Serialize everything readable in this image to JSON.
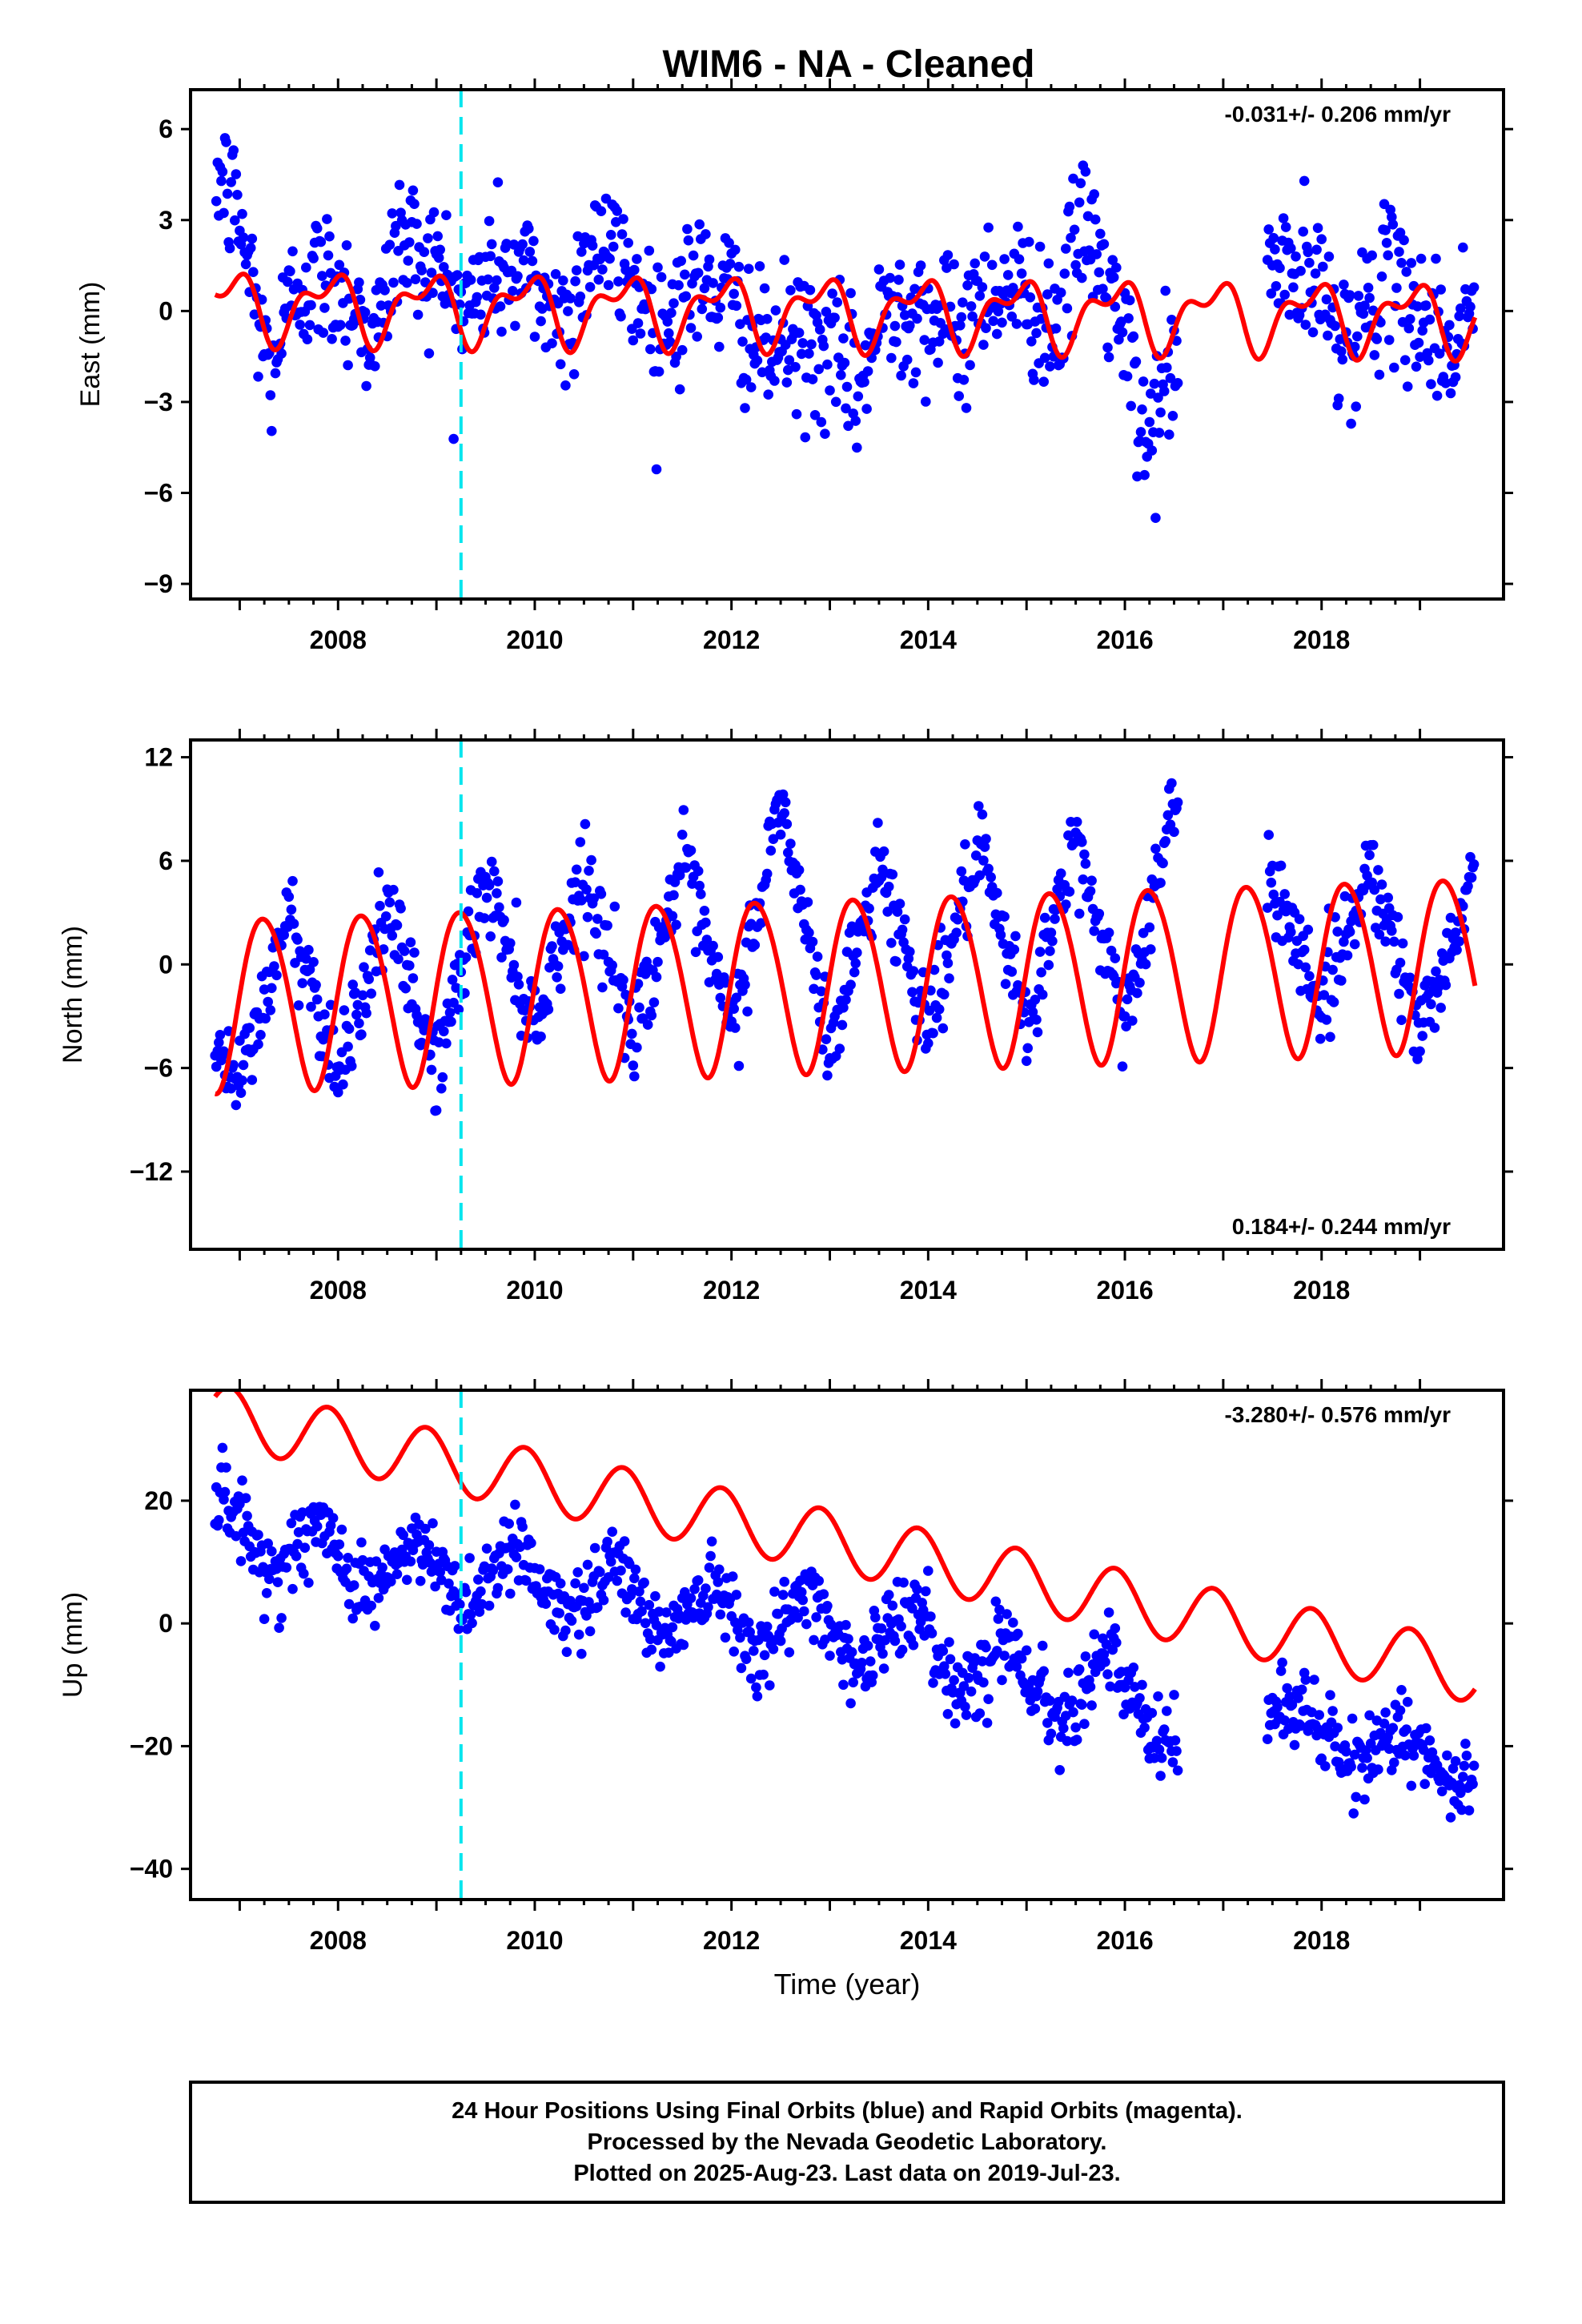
{
  "title": "WIM6  - NA - Cleaned",
  "colors": {
    "data_points": "#0000ff",
    "model_fit": "#ff0000",
    "event_marker": "#00e5ee",
    "frame": "#000000"
  },
  "x_ticks": [
    "2008",
    "2010",
    "2012",
    "2014",
    "2016",
    "2018"
  ],
  "xlabel": "Time (year)",
  "event_marker_year": 2009.25,
  "data_span_years": [
    2006.75,
    2019.56
  ],
  "footer": {
    "line1": "24 Hour Positions Using Final Orbits (blue) and Rapid Orbits (magenta).",
    "line2": "Processed by the Nevada Geodetic Laboratory.",
    "line3": "Plotted on 2025-Aug-23. Last data on 2019-Jul-23."
  },
  "chart_data": [
    {
      "type": "scatter",
      "component": "East",
      "ylabel": "East (mm)",
      "rate_text": "-0.031+/- 0.206 mm/yr",
      "rate_position": "top-right",
      "xlim": [
        2006.5,
        2019.85
      ],
      "ylim": [
        -9.5,
        7.3
      ],
      "yticks": [
        -9,
        -6,
        -3,
        0,
        3,
        6
      ],
      "ytick_labels": [
        "−9",
        "−6",
        "−3",
        "0",
        "3",
        "6"
      ],
      "model": {
        "offset": 0.0,
        "trend": -0.031,
        "annual_amp": 0.95,
        "annual_phase": 2.2,
        "semi_amp": 0.55,
        "semi_phase": 0.4
      },
      "scatter_sd": 1.2,
      "series": [
        {
          "x": [
            2006.8,
            2007.0,
            2007.3,
            2007.6,
            2008.0,
            2008.4,
            2008.6,
            2009.0,
            2009.3,
            2009.6,
            2010.0,
            2010.3,
            2010.6,
            2011.0,
            2011.3,
            2011.6,
            2012.0,
            2012.3,
            2012.6,
            2013.0,
            2013.3,
            2013.6,
            2014.0,
            2014.3,
            2014.6,
            2015.0,
            2015.3,
            2015.6,
            2016.0,
            2016.2,
            2016.5,
            2017.6,
            2018.0,
            2018.3,
            2018.6,
            2019.0,
            2019.3,
            2019.5
          ],
          "y": [
            4.5,
            3.0,
            -2.0,
            1.0,
            1.0,
            -1.0,
            2.5,
            1.5,
            0.0,
            1.5,
            1.0,
            -0.5,
            2.5,
            1.0,
            -0.5,
            1.0,
            0.5,
            -1.5,
            -1.0,
            -1.5,
            -2.5,
            0.5,
            0.0,
            -1.0,
            1.0,
            0.5,
            -0.5,
            3.0,
            -1.0,
            -4.5,
            -1.5,
            1.5,
            0.5,
            -1.0,
            1.0,
            0.0,
            -1.5,
            0.5
          ]
        }
      ]
    },
    {
      "type": "scatter",
      "component": "North",
      "ylabel": "North (mm)",
      "rate_text": "0.184+/- 0.244 mm/yr",
      "rate_position": "bottom-right",
      "xlim": [
        2006.5,
        2019.85
      ],
      "ylim": [
        -16.5,
        13.0
      ],
      "yticks": [
        -12,
        -6,
        0,
        6,
        12
      ],
      "ytick_labels": [
        "−12",
        "−6",
        "0",
        "6",
        "12"
      ],
      "model": {
        "offset": -1.0,
        "trend": 0.184,
        "annual_amp": 5.0,
        "annual_phase": 0.0,
        "semi_amp": 0.4,
        "semi_phase": 1.0
      },
      "scatter_sd": 1.3,
      "series": [
        {
          "x": [
            2006.8,
            2007.0,
            2007.5,
            2008.0,
            2008.5,
            2009.0,
            2009.5,
            2010.0,
            2010.5,
            2011.0,
            2011.5,
            2012.0,
            2012.5,
            2013.0,
            2013.5,
            2014.0,
            2014.5,
            2015.0,
            2015.5,
            2016.0,
            2016.5,
            2017.6,
            2018.0,
            2018.5,
            2019.0,
            2019.5
          ],
          "y": [
            -5.5,
            -7.0,
            3.0,
            -6.0,
            3.0,
            -6.0,
            5.0,
            -3.5,
            5.5,
            -4.0,
            6.0,
            -4.0,
            9.5,
            -5.0,
            6.0,
            -3.5,
            6.5,
            -3.5,
            7.0,
            -3.0,
            9.0,
            4.0,
            -2.5,
            6.0,
            -4.0,
            4.5
          ]
        }
      ]
    },
    {
      "type": "scatter",
      "component": "Up",
      "ylabel": "Up (mm)",
      "rate_text": "-3.280+/- 0.576 mm/yr",
      "rate_position": "top-right",
      "xlim": [
        2006.5,
        2019.85
      ],
      "ylim": [
        -45,
        38
      ],
      "yticks": [
        -40,
        -20,
        0,
        20
      ],
      "ytick_labels": [
        "−40",
        "−20",
        "0",
        "20"
      ],
      "model": {
        "offset": 13.5,
        "trend": -3.28,
        "annual_amp": 5.0,
        "annual_phase": 2.2,
        "semi_amp": 0.0,
        "semi_phase": 0.0
      },
      "scatter_sd": 3.3,
      "series": [
        {
          "x": [
            2006.8,
            2007.3,
            2007.8,
            2008.3,
            2008.8,
            2009.3,
            2009.8,
            2010.3,
            2010.8,
            2011.3,
            2011.8,
            2012.3,
            2012.8,
            2013.3,
            2013.8,
            2014.3,
            2014.8,
            2015.3,
            2015.8,
            2016.3,
            2017.8,
            2018.3,
            2018.8,
            2019.3,
            2019.5
          ],
          "y": [
            22,
            8,
            16,
            5,
            13,
            3,
            14,
            0,
            11,
            -3,
            8,
            -5,
            6,
            -8,
            4,
            -11,
            -2,
            -16,
            -4,
            -20,
            -13,
            -24,
            -16,
            -28,
            -25
          ]
        }
      ]
    }
  ]
}
